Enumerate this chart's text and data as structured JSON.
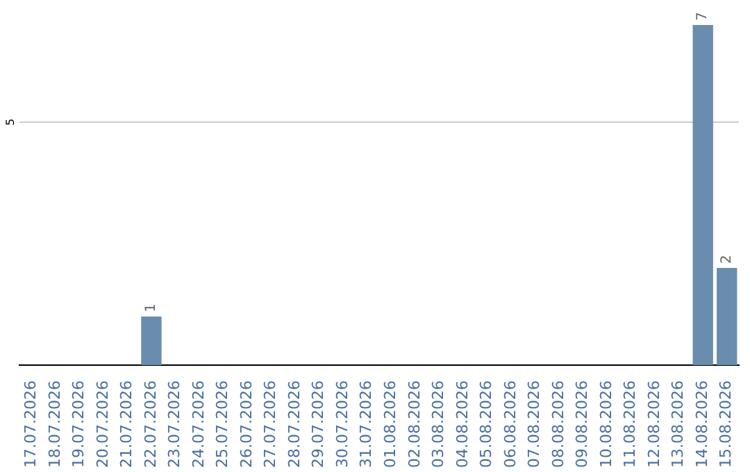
{
  "chart_data": {
    "type": "bar",
    "categories": [
      "17.07.2026",
      "18.07.2026",
      "19.07.2026",
      "20.07.2026",
      "21.07.2026",
      "22.07.2026",
      "23.07.2026",
      "24.07.2026",
      "25.07.2026",
      "26.07.2026",
      "27.07.2026",
      "28.07.2026",
      "29.07.2026",
      "30.07.2026",
      "31.07.2026",
      "01.08.2026",
      "02.08.2026",
      "03.08.2026",
      "04.08.2026",
      "05.08.2026",
      "06.08.2026",
      "07.08.2026",
      "08.08.2026",
      "09.08.2026",
      "10.08.2026",
      "11.08.2026",
      "12.08.2026",
      "13.08.2026",
      "14.08.2026",
      "15.08.2026"
    ],
    "values": [
      0,
      0,
      0,
      0,
      0,
      1,
      0,
      0,
      0,
      0,
      0,
      0,
      0,
      0,
      0,
      0,
      0,
      0,
      0,
      0,
      0,
      0,
      0,
      0,
      0,
      0,
      0,
      0,
      7,
      2
    ],
    "value_labels": [
      null,
      null,
      null,
      null,
      null,
      "1",
      null,
      null,
      null,
      null,
      null,
      null,
      null,
      null,
      null,
      null,
      null,
      null,
      null,
      null,
      null,
      null,
      null,
      null,
      null,
      null,
      null,
      null,
      "7",
      "2"
    ],
    "color": "#6a8cae",
    "ref_lines": [
      {
        "axis": "y",
        "value": 5,
        "label": "5",
        "color": "#cccccc"
      }
    ],
    "legend": false
  }
}
